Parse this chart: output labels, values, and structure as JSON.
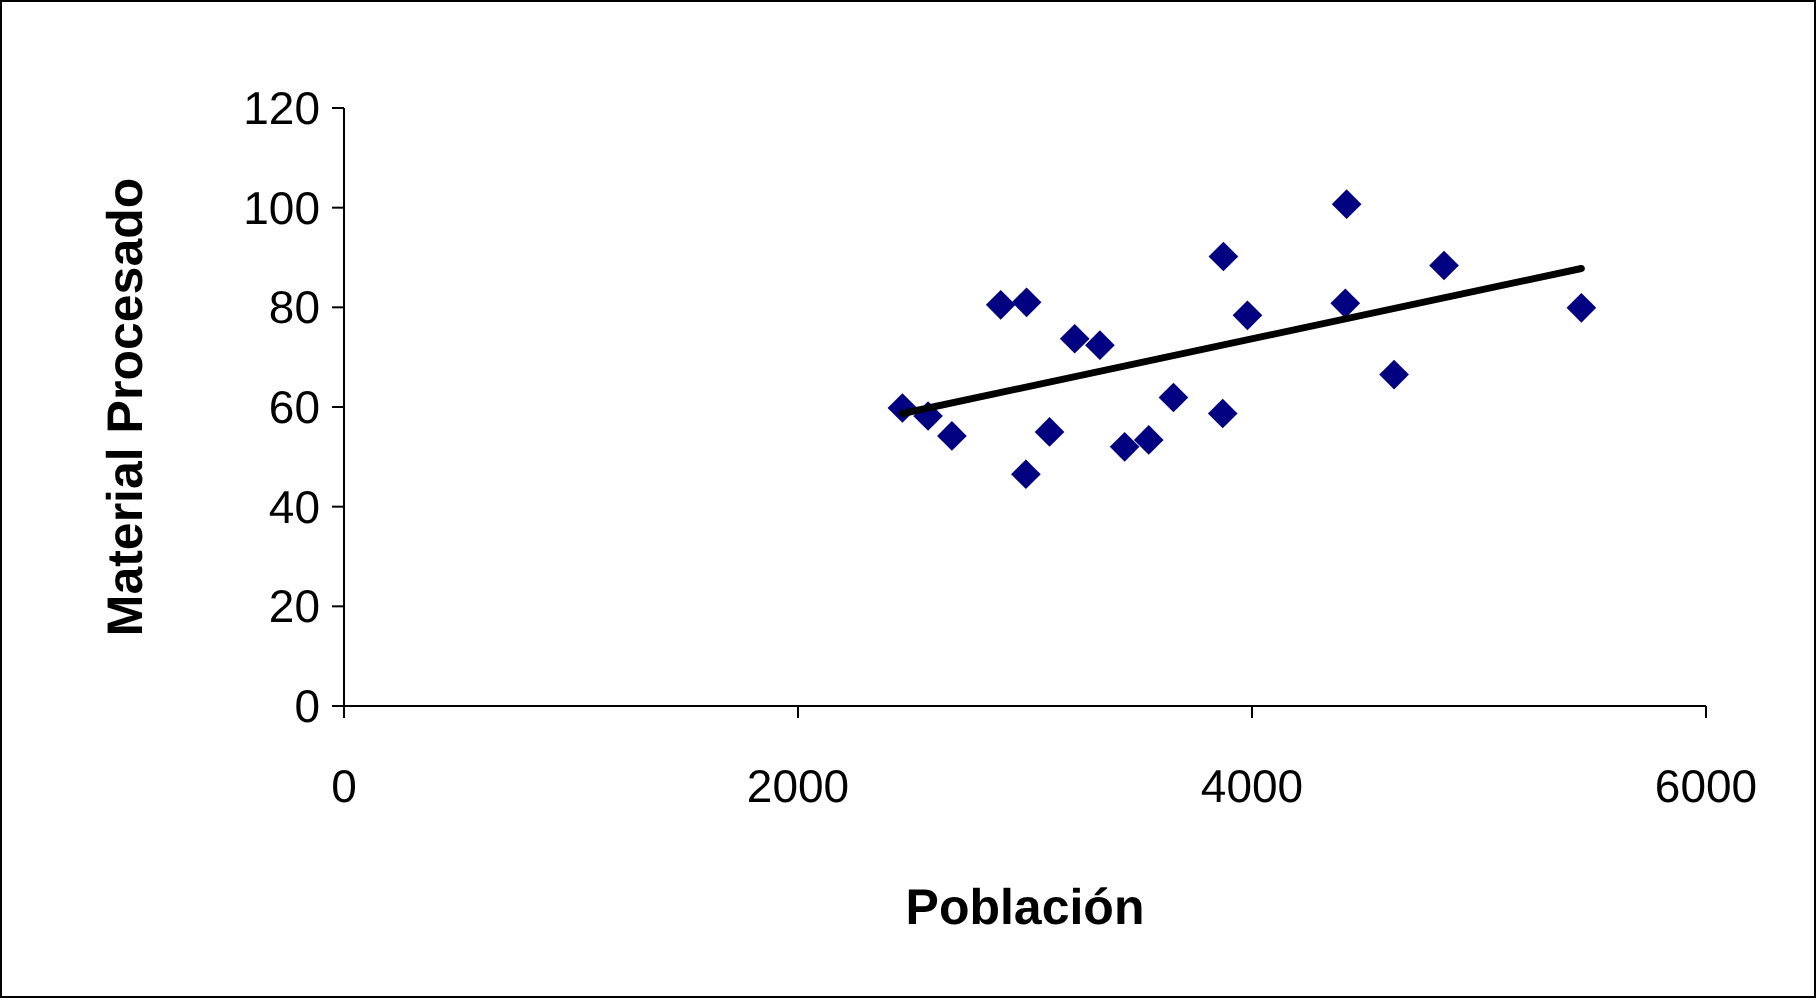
{
  "chart_data": {
    "type": "scatter",
    "xlabel": "Población",
    "ylabel": "Material Procesado",
    "xlim": [
      0,
      6000
    ],
    "xticks": [
      0,
      2000,
      4000,
      6000
    ],
    "ylim": [
      0,
      120
    ],
    "yticks": [
      0,
      20,
      40,
      60,
      80,
      100,
      120
    ],
    "grid": false,
    "marker": "diamond",
    "series": [
      {
        "color": "#000080",
        "x": [
          2460,
          2573,
          2678,
          3108,
          3004,
          2893,
          3007,
          3219,
          3330,
          3439,
          3545,
          3654,
          3871,
          3874,
          3980,
          4417,
          4411,
          4626,
          4846,
          5451
        ],
        "values": [
          59.8,
          58.2,
          54.2,
          55,
          46.5,
          80.5,
          81,
          73.7,
          72.4,
          52,
          53.4,
          61.9,
          58.7,
          90.2,
          78.4,
          100.7,
          80.8,
          66.5,
          88.4,
          79.9
        ]
      },
      {
        "type": "line",
        "color": "#000000",
        "marker": "none",
        "line_style": "solid",
        "x": [
          2460,
          5451
        ],
        "values": [
          58.7,
          87.8
        ]
      }
    ]
  }
}
